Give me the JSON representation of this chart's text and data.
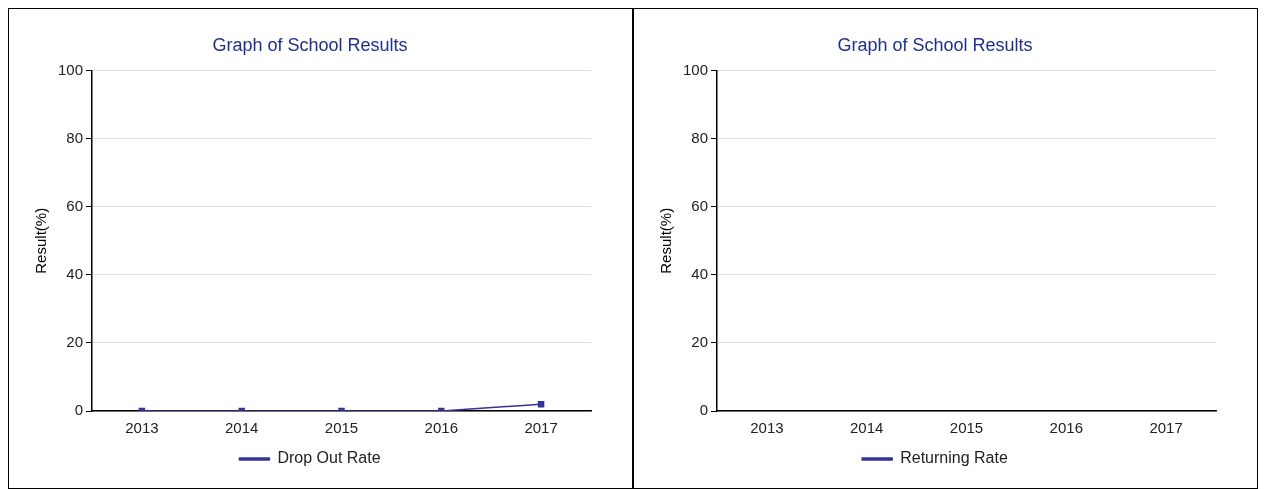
{
  "chart_data": [
    {
      "type": "line",
      "title": "Graph of School Results",
      "ylabel": "Result(%)",
      "categories": [
        "2013",
        "2014",
        "2015",
        "2016",
        "2017"
      ],
      "series": [
        {
          "name": "Drop Out Rate",
          "color": "#333399",
          "values": [
            0,
            0,
            0,
            0,
            2
          ]
        }
      ],
      "ylim": [
        0,
        100
      ],
      "yticks": [
        0,
        20,
        40,
        60,
        80,
        100
      ],
      "grid": "y",
      "legend": "bottom",
      "marker": "square"
    },
    {
      "type": "line",
      "title": "Graph of School Results",
      "ylabel": "Result(%)",
      "categories": [
        "2013",
        "2014",
        "2015",
        "2016",
        "2017"
      ],
      "series": [
        {
          "name": "Returning Rate",
          "color": "#333399",
          "values": [
            null,
            null,
            null,
            null,
            null
          ]
        }
      ],
      "ylim": [
        0,
        100
      ],
      "yticks": [
        0,
        20,
        40,
        60,
        80,
        100
      ],
      "grid": "y",
      "legend": "bottom",
      "marker": "square"
    }
  ]
}
